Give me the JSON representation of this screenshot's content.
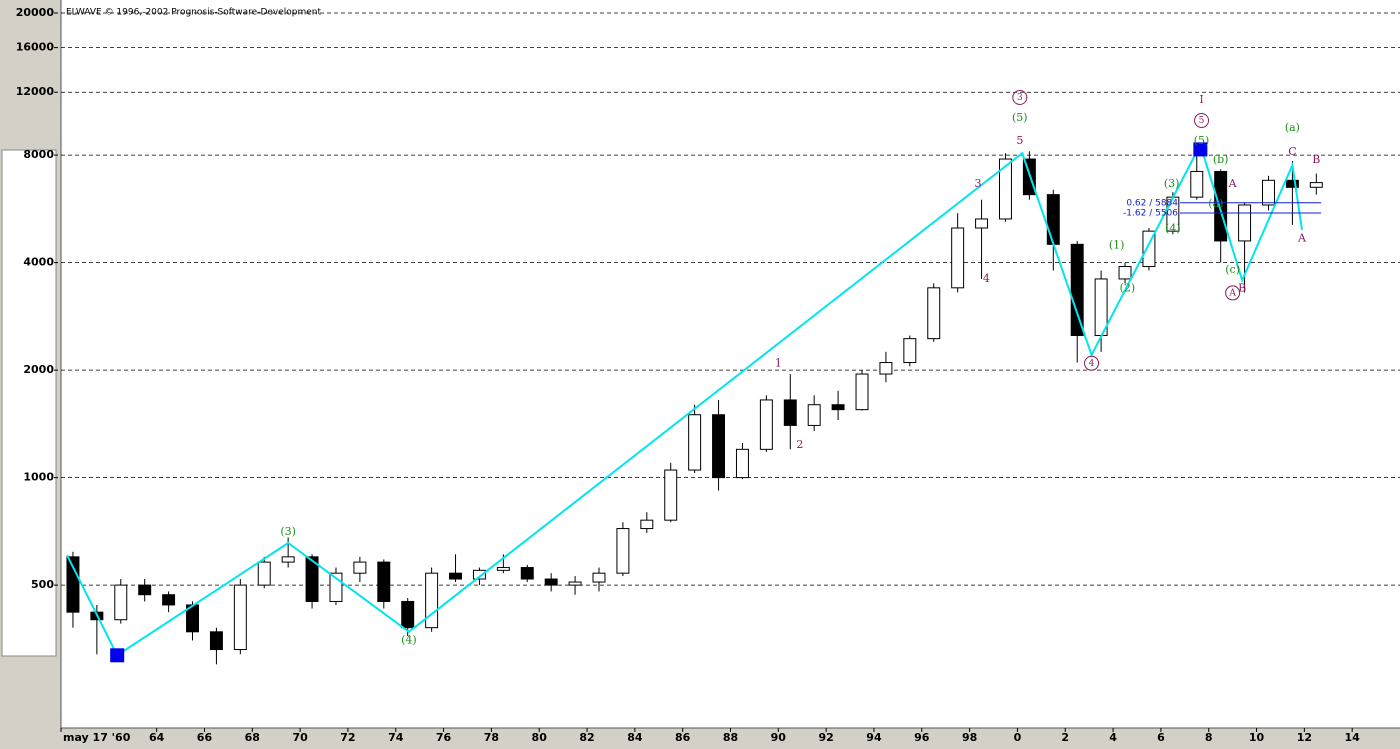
{
  "chart_data": {
    "type": "candlestick",
    "title": "ELWAVE © 1996,-2002 Prognosis-Software-Development",
    "log_scale": true,
    "grid": true,
    "xlim": [
      1960,
      2016
    ],
    "ylim": [
      199,
      20000
    ],
    "yticks": [
      500,
      1000,
      2000,
      4000,
      8000,
      12000,
      16000,
      20000
    ],
    "xticks": [
      {
        "value": 1960,
        "label": "may 17 '60"
      },
      {
        "value": 1964,
        "label": "64"
      },
      {
        "value": 1966,
        "label": "66"
      },
      {
        "value": 1968,
        "label": "68"
      },
      {
        "value": 1970,
        "label": "70"
      },
      {
        "value": 1972,
        "label": "72"
      },
      {
        "value": 1974,
        "label": "74"
      },
      {
        "value": 1976,
        "label": "76"
      },
      {
        "value": 1978,
        "label": "78"
      },
      {
        "value": 1980,
        "label": "80"
      },
      {
        "value": 1982,
        "label": "82"
      },
      {
        "value": 1984,
        "label": "84"
      },
      {
        "value": 1986,
        "label": "86"
      },
      {
        "value": 1988,
        "label": "88"
      },
      {
        "value": 1990,
        "label": "90"
      },
      {
        "value": 1992,
        "label": "92"
      },
      {
        "value": 1994,
        "label": "94"
      },
      {
        "value": 1996,
        "label": "96"
      },
      {
        "value": 1998,
        "label": "98"
      },
      {
        "value": 2000,
        "label": "0"
      },
      {
        "value": 2002,
        "label": "2"
      },
      {
        "value": 2004,
        "label": "4"
      },
      {
        "value": 2006,
        "label": "6"
      },
      {
        "value": 2008,
        "label": "8"
      },
      {
        "value": 2010,
        "label": "10"
      },
      {
        "value": 2012,
        "label": "12"
      },
      {
        "value": 2014,
        "label": "14"
      }
    ],
    "x": [
      1960,
      1961,
      1962,
      1963,
      1964,
      1965,
      1966,
      1967,
      1968,
      1969,
      1970,
      1971,
      1972,
      1973,
      1974,
      1975,
      1976,
      1977,
      1978,
      1979,
      1980,
      1981,
      1982,
      1983,
      1984,
      1985,
      1986,
      1987,
      1988,
      1989,
      1990,
      1991,
      1992,
      1993,
      1994,
      1995,
      1996,
      1997,
      1998,
      1999,
      2000,
      2001,
      2002,
      2003,
      2004,
      2005,
      2006,
      2007,
      2008,
      2009,
      2010,
      2011,
      2012
    ],
    "open": [
      600,
      420,
      400,
      500,
      470,
      440,
      370,
      330,
      500,
      580,
      600,
      450,
      540,
      580,
      450,
      380,
      540,
      520,
      550,
      560,
      520,
      500,
      510,
      540,
      720,
      760,
      1050,
      1500,
      1000,
      1200,
      1650,
      1400,
      1600,
      1550,
      1950,
      2100,
      2450,
      3400,
      5000,
      5300,
      7800,
      6200,
      4500,
      2500,
      3600,
      3900,
      4900,
      6100,
      7200,
      4600,
      5800,
      6800,
      6500
    ],
    "high": [
      620,
      440,
      520,
      520,
      480,
      450,
      380,
      520,
      600,
      680,
      610,
      560,
      600,
      590,
      460,
      560,
      610,
      560,
      610,
      570,
      540,
      530,
      560,
      750,
      800,
      1100,
      1600,
      1650,
      1250,
      1700,
      1950,
      1700,
      1750,
      2000,
      2250,
      2500,
      3500,
      5500,
      6000,
      8100,
      8200,
      6400,
      4600,
      3800,
      4000,
      5000,
      6300,
      8200,
      7300,
      5900,
      7000,
      7700,
      7100
    ],
    "low": [
      380,
      320,
      390,
      450,
      420,
      350,
      300,
      320,
      490,
      560,
      430,
      440,
      510,
      430,
      360,
      370,
      510,
      500,
      540,
      510,
      480,
      470,
      480,
      530,
      700,
      750,
      1030,
      920,
      990,
      1180,
      1200,
      1350,
      1450,
      1540,
      1850,
      2050,
      2400,
      3300,
      3600,
      5200,
      6000,
      3800,
      2100,
      2250,
      3500,
      3800,
      4800,
      6000,
      4000,
      3300,
      5600,
      5100,
      6200
    ],
    "close": [
      420,
      400,
      500,
      470,
      440,
      370,
      330,
      500,
      580,
      600,
      450,
      540,
      580,
      450,
      380,
      540,
      520,
      550,
      560,
      520,
      500,
      510,
      540,
      720,
      760,
      1050,
      1500,
      1000,
      1200,
      1650,
      1400,
      1600,
      1550,
      1950,
      2100,
      2450,
      3400,
      5000,
      5300,
      7800,
      6200,
      4500,
      2500,
      3600,
      3900,
      4900,
      6100,
      7200,
      4600,
      5800,
      6800,
      6500,
      6700
    ],
    "wave_line": {
      "color": "#00e5ee",
      "x": [
        1960.25,
        1962.35,
        1969.5,
        1974.55,
        2000.2,
        2003.1,
        2007.65,
        2009.4,
        2011.5,
        2011.9
      ],
      "values": [
        607,
        318,
        656,
        370,
        8100,
        2205,
        8550,
        3570,
        7500,
        4940
      ]
    },
    "markers": {
      "color": "#0000ee",
      "x": [
        1962.35,
        2007.65
      ],
      "values": [
        318,
        8300
      ]
    },
    "fib_levels": {
      "color": "#1020d0",
      "labels": [
        "0.62 / 5884",
        "-1.62 / 5506"
      ],
      "values": [
        5884,
        5506
      ]
    },
    "wave_labels": [
      {
        "text": "(3)",
        "x": 1969.5,
        "y": 704,
        "color": "#1a8f1a"
      },
      {
        "text": "(4)",
        "x": 1974.55,
        "y": 350,
        "color": "#1a8f1a"
      },
      {
        "text": "1",
        "x": 1990.0,
        "y": 2090,
        "color": "#8b1a5b"
      },
      {
        "text": "2",
        "x": 1990.9,
        "y": 1234,
        "color": "#8b1a5b"
      },
      {
        "text": "3",
        "x": 1998.35,
        "y": 6640,
        "color": "#8b1a5b"
      },
      {
        "text": "4",
        "x": 1998.7,
        "y": 3600,
        "color": "#8b1a5b"
      },
      {
        "text": "5",
        "x": 2000.1,
        "y": 8770,
        "color": "#8b1a5b"
      },
      {
        "text": "(5)",
        "x": 2000.1,
        "y": 10150,
        "color": "#1a8f1a"
      },
      {
        "text": "3",
        "x": 2000.1,
        "y": 11600,
        "color": "#8b1a5b",
        "circled": true
      },
      {
        "text": "4",
        "x": 2003.1,
        "y": 2090,
        "color": "#8b1a5b",
        "circled": true
      },
      {
        "text": "(1)",
        "x": 2004.15,
        "y": 4470,
        "color": "#1a8f1a"
      },
      {
        "text": "(2)",
        "x": 2004.6,
        "y": 3390,
        "color": "#1a8f1a"
      },
      {
        "text": "(3)",
        "x": 2006.45,
        "y": 6640,
        "color": "#1a8f1a"
      },
      {
        "text": "(4)",
        "x": 2006.5,
        "y": 4960,
        "color": "#1a8f1a"
      },
      {
        "text": "I",
        "x": 2007.7,
        "y": 11400,
        "color": "#c02040"
      },
      {
        "text": "5",
        "x": 2007.7,
        "y": 10000,
        "color": "#8b1a5b",
        "circled": true
      },
      {
        "text": "(5)",
        "x": 2007.7,
        "y": 8770,
        "color": "#1a8f1a"
      },
      {
        "text": "(b)",
        "x": 2008.5,
        "y": 7750,
        "color": "#1a8f1a"
      },
      {
        "text": "A",
        "x": 2009.0,
        "y": 6640,
        "color": "#8b1a5b"
      },
      {
        "text": "(a)",
        "x": 2008.3,
        "y": 5830,
        "color": "#1a8f1a"
      },
      {
        "text": "(c)",
        "x": 2009.0,
        "y": 3820,
        "color": "#1a8f1a"
      },
      {
        "text": "A",
        "x": 2009.0,
        "y": 3290,
        "color": "#8b1a5b",
        "circled": true
      },
      {
        "text": "B",
        "x": 2009.4,
        "y": 3390,
        "color": "#8b1a5b"
      },
      {
        "text": "(a)",
        "x": 2011.5,
        "y": 9520,
        "color": "#1a8f1a"
      },
      {
        "text": "C",
        "x": 2011.5,
        "y": 8160,
        "color": "#8b1a5b"
      },
      {
        "text": "B",
        "x": 2012.5,
        "y": 7750,
        "color": "#8b1a5b"
      },
      {
        "text": "A",
        "x": 2011.9,
        "y": 4680,
        "color": "#8b1a5b"
      }
    ]
  }
}
